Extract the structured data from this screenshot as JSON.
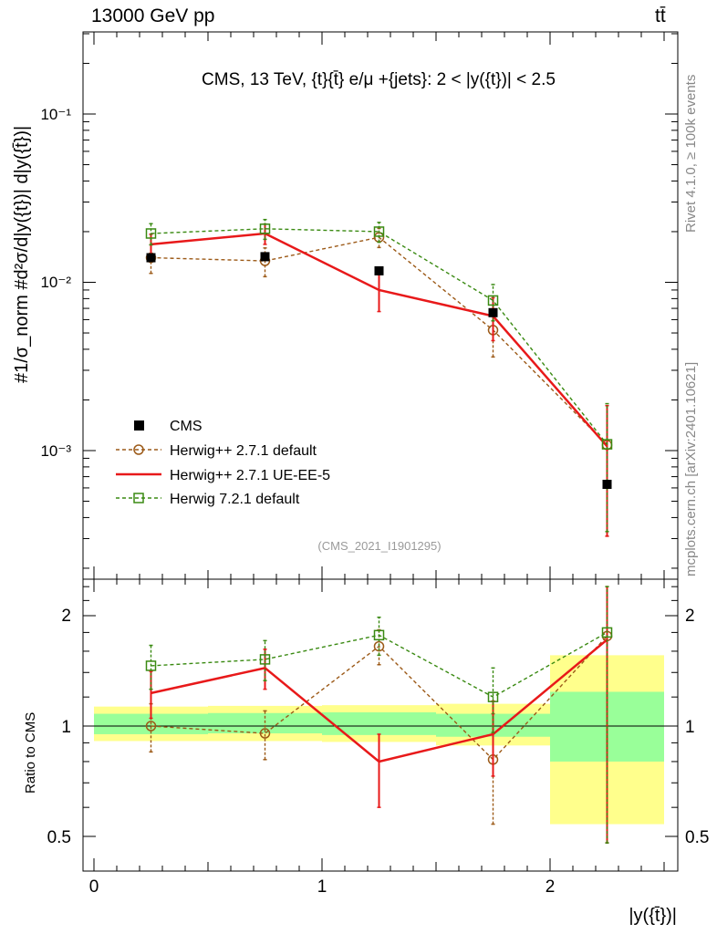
{
  "header": {
    "left": "13000 GeV pp",
    "right": "tt̄"
  },
  "side_labels": {
    "rivet": "Rivet 4.1.0, ≥ 100k events",
    "mcplots": "mcplots.cern.ch [arXiv:2401.10621]"
  },
  "main_plot": {
    "title": "CMS, 13 TeV, {t}{t̄} e/μ +{jets}: 2 < |y({t})| < 2.5",
    "ylabel": "#1/σ_norm #d²σ/d|y({t})| d|y({t̄})|",
    "watermark": "(CMS_2021_I1901295)",
    "ylog_range": [
      0.00015,
      0.35
    ],
    "tick_labels": [
      "10⁻¹",
      "10⁻²",
      "10⁻³"
    ]
  },
  "ratio_plot": {
    "ylabel": "Ratio to CMS",
    "ylim": [
      0.4,
      2.4
    ],
    "tick_labels": [
      "0.5",
      "1",
      "2"
    ],
    "xlabel": "|y({t̄})|",
    "x_tick_labels": [
      "0",
      "1",
      "2"
    ]
  },
  "chart_data": {
    "type": "line",
    "x_bins": [
      [
        0,
        0.5
      ],
      [
        0.5,
        1.0
      ],
      [
        1.0,
        1.5
      ],
      [
        1.5,
        2.0
      ],
      [
        2.0,
        2.5
      ]
    ],
    "x_centers": [
      0.25,
      0.75,
      1.25,
      1.75,
      2.25
    ],
    "xlim": [
      -0.05,
      2.55
    ],
    "legend": [
      "CMS",
      "Herwig++ 2.7.1 default",
      "Herwig++ 2.7.1 UE-EE-5",
      "Herwig 7.2.1 default"
    ],
    "cms": {
      "name": "CMS",
      "color": "#000000",
      "values": [
        0.014,
        0.0142,
        0.0117,
        0.0066,
        0.00063
      ]
    },
    "series": [
      {
        "name": "Herwig++ 2.7.1 default",
        "color": "#9c5a18",
        "style": "dashed",
        "marker": "circle",
        "values": [
          0.014,
          0.0134,
          0.0185,
          0.0052,
          0.00108
        ],
        "err_lo": [
          0.0113,
          0.0108,
          0.0161,
          0.0036,
          0.00031
        ],
        "err_hi": [
          0.0167,
          0.016,
          0.0209,
          0.0068,
          0.00185
        ],
        "ratio": [
          1.0,
          0.955,
          1.65,
          0.81,
          1.76
        ],
        "ratio_lo": [
          0.85,
          0.81,
          1.47,
          0.54,
          0.48
        ],
        "ratio_hi": [
          1.15,
          1.1,
          1.83,
          1.08,
          2.4
        ]
      },
      {
        "name": "Herwig++ 2.7.1 UE-EE-5",
        "color": "#e8191a",
        "style": "solid",
        "marker": "none",
        "values": [
          0.0168,
          0.0195,
          0.009,
          0.0063,
          0.00106
        ],
        "err_lo": [
          0.0143,
          0.0168,
          0.0067,
          0.0045,
          0.00031
        ],
        "err_hi": [
          0.0193,
          0.0222,
          0.0113,
          0.0081,
          0.00185
        ],
        "ratio": [
          1.23,
          1.44,
          0.8,
          0.95,
          1.72
        ],
        "ratio_lo": [
          1.05,
          1.26,
          0.6,
          0.73,
          0.48
        ],
        "ratio_hi": [
          1.41,
          1.62,
          0.95,
          1.17,
          2.4
        ]
      },
      {
        "name": "Herwig 7.2.1 default",
        "color": "#3a8a12",
        "style": "dashed",
        "marker": "square",
        "values": [
          0.0195,
          0.0208,
          0.02,
          0.0078,
          0.00109
        ],
        "err_lo": [
          0.0167,
          0.018,
          0.0173,
          0.0059,
          0.00033
        ],
        "err_hi": [
          0.0223,
          0.0236,
          0.0227,
          0.0097,
          0.0019
        ],
        "ratio": [
          1.46,
          1.52,
          1.77,
          1.2,
          1.8
        ],
        "ratio_lo": [
          1.26,
          1.33,
          1.56,
          0.96,
          0.48
        ],
        "ratio_hi": [
          1.66,
          1.71,
          1.98,
          1.44,
          2.4
        ]
      }
    ],
    "ratio_bands": {
      "green": [
        [
          0.95,
          1.08
        ],
        [
          0.955,
          1.085
        ],
        [
          0.945,
          1.09
        ],
        [
          0.935,
          1.08
        ],
        [
          0.8,
          1.24
        ]
      ],
      "yellow": [
        [
          0.91,
          1.13
        ],
        [
          0.91,
          1.135
        ],
        [
          0.905,
          1.14
        ],
        [
          0.885,
          1.15
        ],
        [
          0.54,
          1.56
        ]
      ]
    }
  }
}
